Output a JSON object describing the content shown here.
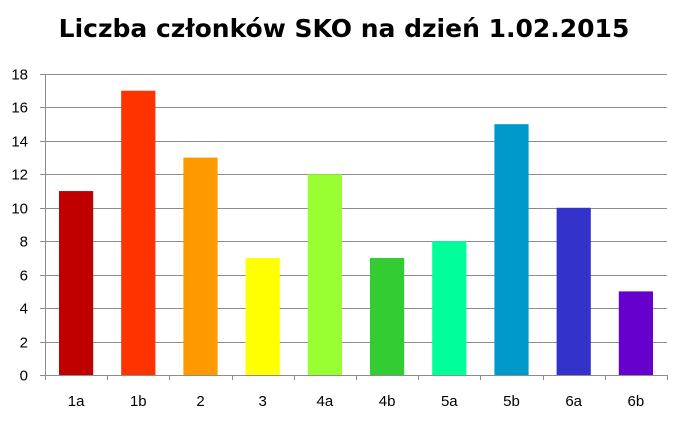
{
  "chart_data": {
    "type": "bar",
    "title": "Liczba członków SKO na dzień 1.02.2015",
    "xlabel": "",
    "ylabel": "",
    "categories": [
      "1a",
      "1b",
      "2",
      "3",
      "4a",
      "4b",
      "5a",
      "5b",
      "6a",
      "6b"
    ],
    "values": [
      11,
      17,
      13,
      7,
      12,
      7,
      8,
      15,
      10,
      5
    ],
    "colors": [
      "#C00000",
      "#FF3300",
      "#FF9900",
      "#FFFF00",
      "#99FF33",
      "#33CC33",
      "#00FF99",
      "#0099CC",
      "#3333CC",
      "#6600CC"
    ],
    "ylim": [
      0,
      18
    ],
    "yticks": [
      0,
      2,
      4,
      6,
      8,
      10,
      12,
      14,
      16,
      18
    ],
    "grid": true,
    "legend": "none"
  }
}
